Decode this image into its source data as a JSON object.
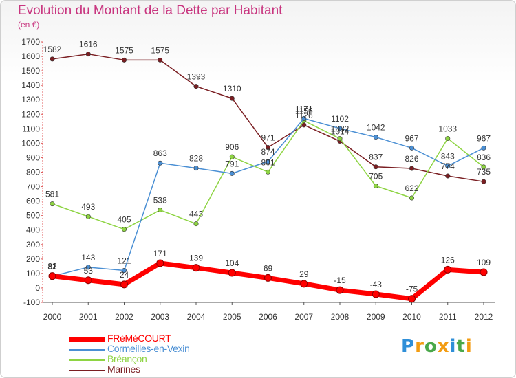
{
  "header": {
    "title": "Evolution du Montant de la Dette par Habitant",
    "subtitle": "(en €)"
  },
  "chart_data": {
    "type": "line",
    "title": "Evolution du Montant de la Dette par Habitant",
    "ylabel": "(en €)",
    "xlabel": "",
    "x": [
      "2000",
      "2001",
      "2002",
      "2003",
      "2004",
      "2005",
      "2006",
      "2007",
      "2008",
      "2009",
      "2010",
      "2011",
      "2012"
    ],
    "ylim": [
      -100,
      1700
    ],
    "yticks": [
      -100,
      0,
      100,
      200,
      300,
      400,
      500,
      600,
      700,
      800,
      900,
      1000,
      1100,
      1200,
      1300,
      1400,
      1500,
      1600,
      1700
    ],
    "grid": false,
    "legend_position": "bottom-left",
    "series": [
      {
        "name": "FRéMéCOURT",
        "color": "#ff0000",
        "values": [
          82,
          53,
          24,
          171,
          139,
          104,
          69,
          29,
          -15,
          -43,
          -75,
          126,
          109
        ]
      },
      {
        "name": "Cormeilles-en-Vexin",
        "color": "#4a8fd4",
        "values": [
          81,
          143,
          121,
          863,
          828,
          791,
          874,
          1171,
          1102,
          1042,
          967,
          843,
          967
        ]
      },
      {
        "name": "Bréançon",
        "color": "#8ed443",
        "values": [
          581,
          493,
          405,
          538,
          443,
          906,
          801,
          1156,
          1032,
          705,
          622,
          1033,
          836
        ]
      },
      {
        "name": "Marines",
        "color": "#7a1e22",
        "values": [
          1582,
          1616,
          1575,
          1575,
          1393,
          1310,
          971,
          1126,
          1014,
          837,
          826,
          774,
          735
        ]
      }
    ]
  },
  "logo": {
    "letters": [
      "P",
      "r",
      "o",
      "x",
      "i",
      "t",
      "i"
    ],
    "colors": [
      "#2f8fd8",
      "#f39c12",
      "#4aa84a",
      "#f39c12",
      "#2f8fd8",
      "#4aa84a",
      "#f39c12"
    ]
  }
}
